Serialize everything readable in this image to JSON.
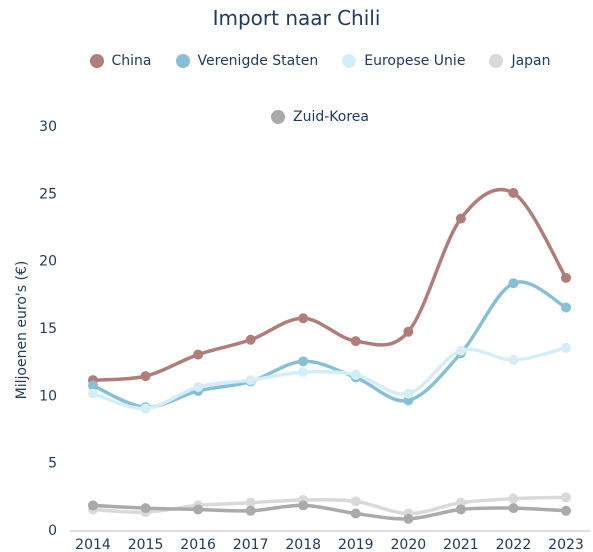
{
  "chart_data": {
    "type": "line",
    "title": "Import naar Chili",
    "ylabel": "Miljoenen euro's (€)",
    "categories": [
      "2014",
      "2015",
      "2016",
      "2017",
      "2018",
      "2019",
      "2020",
      "2021",
      "2022",
      "2023"
    ],
    "series": [
      {
        "name": "China",
        "color": "#b07d7a",
        "values": [
          11.2,
          11.5,
          13.1,
          14.2,
          15.8,
          14.1,
          14.8,
          23.2,
          25.1,
          18.8
        ]
      },
      {
        "name": "Verenigde Staten",
        "color": "#86c0d6",
        "values": [
          10.8,
          9.2,
          10.4,
          11.1,
          12.6,
          11.4,
          9.7,
          13.2,
          18.4,
          16.6
        ]
      },
      {
        "name": "Europese Unie",
        "color": "#d4eef8",
        "values": [
          10.2,
          9.1,
          10.7,
          11.2,
          11.8,
          11.6,
          10.2,
          13.4,
          12.7,
          13.6
        ]
      },
      {
        "name": "Japan",
        "color": "#d9d9d9",
        "values": [
          1.6,
          1.4,
          1.9,
          2.1,
          2.3,
          2.2,
          1.3,
          2.1,
          2.4,
          2.5
        ]
      },
      {
        "name": "Zuid-Korea",
        "color": "#aaaaaa",
        "values": [
          1.9,
          1.7,
          1.6,
          1.5,
          1.9,
          1.3,
          0.9,
          1.6,
          1.7,
          1.5
        ]
      }
    ],
    "ylim": [
      0,
      30
    ],
    "yticks": [
      0,
      5,
      10,
      15,
      20,
      25,
      30
    ],
    "grid": false
  }
}
